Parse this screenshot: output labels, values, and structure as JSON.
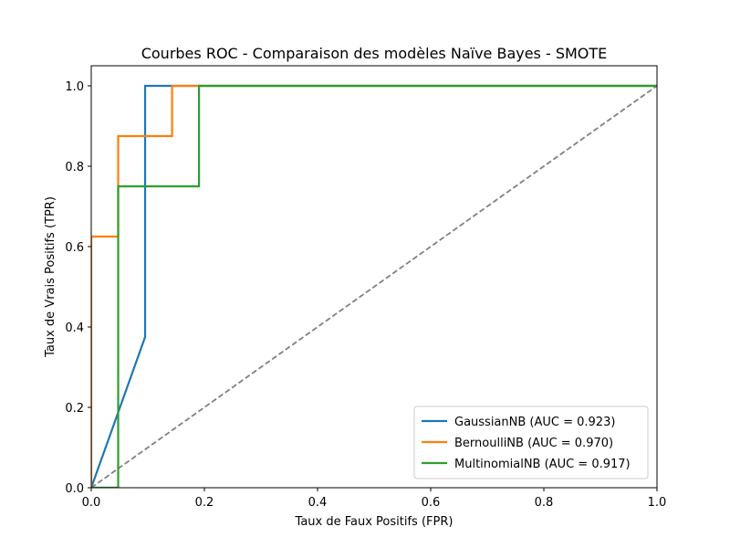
{
  "chart_data": {
    "type": "line",
    "title": "Courbes ROC - Comparaison des modèles Naïve Bayes - SMOTE",
    "xlabel": "Taux de Faux Positifs (FPR)",
    "ylabel": "Taux de Vrais Positifs (TPR)",
    "xlim": [
      0,
      1
    ],
    "ylim": [
      0,
      1.05
    ],
    "xticks": [
      "0.0",
      "0.2",
      "0.4",
      "0.6",
      "0.8",
      "1.0"
    ],
    "yticks": [
      "0.0",
      "0.2",
      "0.4",
      "0.6",
      "0.8",
      "1.0"
    ],
    "grid": false,
    "legend_position": "lower-right",
    "series": [
      {
        "name": "GaussianNB (AUC = 0.923)",
        "color": "#1f77b4",
        "x": [
          0.0,
          0.0952,
          0.0952,
          0.1429,
          1.0
        ],
        "y": [
          0.0,
          0.375,
          1.0,
          1.0,
          1.0
        ]
      },
      {
        "name": "BernoulliNB (AUC = 0.970)",
        "color": "#ff7f0e",
        "x": [
          0.0,
          0.0,
          0.0476,
          0.0476,
          0.1429,
          0.1429,
          1.0
        ],
        "y": [
          0.0,
          0.625,
          0.625,
          0.875,
          0.875,
          1.0,
          1.0
        ]
      },
      {
        "name": "MultinomialNB (AUC = 0.917)",
        "color": "#2ca02c",
        "x": [
          0.0,
          0.0476,
          0.0476,
          0.1905,
          0.1905,
          1.0
        ],
        "y": [
          0.0,
          0.0,
          0.75,
          0.75,
          1.0,
          1.0
        ]
      }
    ],
    "reference_line": {
      "x": [
        0,
        1
      ],
      "y": [
        0,
        1
      ],
      "color": "#808080",
      "style": "dashed"
    }
  }
}
